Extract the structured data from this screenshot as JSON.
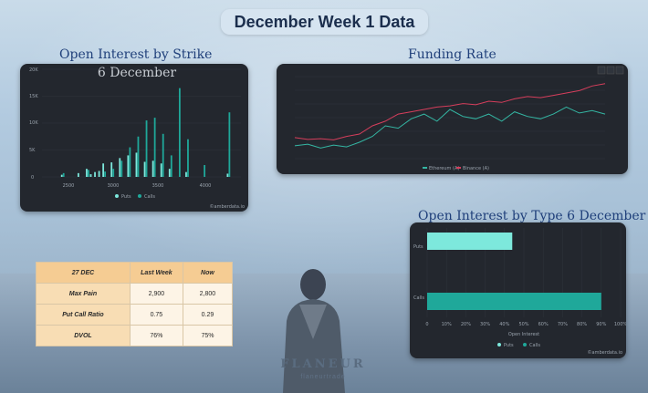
{
  "page_title": "December Week 1 Data",
  "oi_strike": {
    "section_title": "Open Interest by Strike",
    "chart_title": "6 December",
    "ytick_labels": [
      "20K",
      "15K",
      "10K",
      "5K",
      "0"
    ],
    "xtick_labels": [
      "2500",
      "3000",
      "3500",
      "4000"
    ],
    "legend": [
      "Puts",
      "Calls"
    ],
    "puts_color": "#7de8dc",
    "calls_color": "#1fa89a",
    "watermark": "©amberdata.io"
  },
  "funding": {
    "section_title": "Funding Rate",
    "legend": [
      "Ethereum (A)",
      "Binance (A)"
    ],
    "colors": [
      "#34b6a3",
      "#d63e5c"
    ]
  },
  "oi_type": {
    "section_title": "Open Interest by Type 6 December",
    "categories": [
      "Puts",
      "Calls"
    ],
    "xtick_labels": [
      "0",
      "10%",
      "20%",
      "30%",
      "40%",
      "50%",
      "60%",
      "70%",
      "80%",
      "90%",
      "100%"
    ],
    "xlabel": "Open Interest",
    "legend": [
      "Puts",
      "Calls"
    ],
    "watermark": "©amberdata.io"
  },
  "chart_data": [
    {
      "type": "bar",
      "title": "6 December",
      "series": [
        {
          "name": "Puts",
          "x": [
            2500,
            2700,
            2800,
            2850,
            2900,
            2950,
            3000,
            3100,
            3200,
            3300,
            3400,
            3500,
            3600,
            3700,
            3800,
            4000,
            4500
          ],
          "values": [
            400,
            700,
            1500,
            500,
            900,
            1100,
            2500,
            2700,
            3500,
            4000,
            4500,
            2800,
            3000,
            2500,
            1500,
            900,
            600
          ]
        },
        {
          "name": "Calls",
          "x": [
            2500,
            2800,
            3000,
            3100,
            3200,
            3300,
            3400,
            3500,
            3600,
            3700,
            3800,
            3900,
            4000,
            4200,
            4500
          ],
          "values": [
            700,
            1300,
            1000,
            1500,
            3000,
            5500,
            7500,
            10500,
            11000,
            8000,
            4000,
            16500,
            7000,
            2200,
            12000
          ]
        }
      ],
      "ylim": [
        0,
        20000
      ],
      "legend": [
        "Puts",
        "Calls"
      ]
    },
    {
      "type": "line",
      "title": "Funding Rate",
      "series": [
        {
          "name": "Ethereum (A)",
          "values": [
            0.55,
            0.62,
            0.45,
            0.58,
            0.5,
            0.7,
            0.95,
            1.4,
            1.3,
            1.7,
            1.9,
            1.6,
            2.1,
            1.8,
            1.7,
            1.9,
            1.6,
            2.0,
            1.8,
            1.7,
            1.9,
            2.2,
            1.95,
            2.05,
            1.9
          ]
        },
        {
          "name": "Binance (A)",
          "values": [
            0.9,
            0.82,
            0.85,
            0.8,
            0.95,
            1.05,
            1.4,
            1.6,
            1.9,
            2.0,
            2.1,
            2.2,
            2.25,
            2.35,
            2.3,
            2.45,
            2.4,
            2.55,
            2.65,
            2.6,
            2.7,
            2.8,
            2.9,
            3.1,
            3.2
          ]
        }
      ]
    },
    {
      "type": "bar",
      "title": "Open Interest by Type 6 December",
      "categories": [
        "Puts",
        "Calls"
      ],
      "values": [
        44,
        90
      ],
      "xlabel": "Open Interest",
      "xlim": [
        0,
        100
      ]
    }
  ],
  "table": {
    "headers": [
      "27 DEC",
      "Last Week",
      "Now"
    ],
    "rows": [
      [
        "Max Pain",
        "2,900",
        "2,800"
      ],
      [
        "Put Call Ratio",
        "0.75",
        "0.29"
      ],
      [
        "DVOL",
        "76%",
        "75%"
      ]
    ]
  },
  "brand": {
    "name": "FLANEUR",
    "sub": "flaneurtrade"
  }
}
